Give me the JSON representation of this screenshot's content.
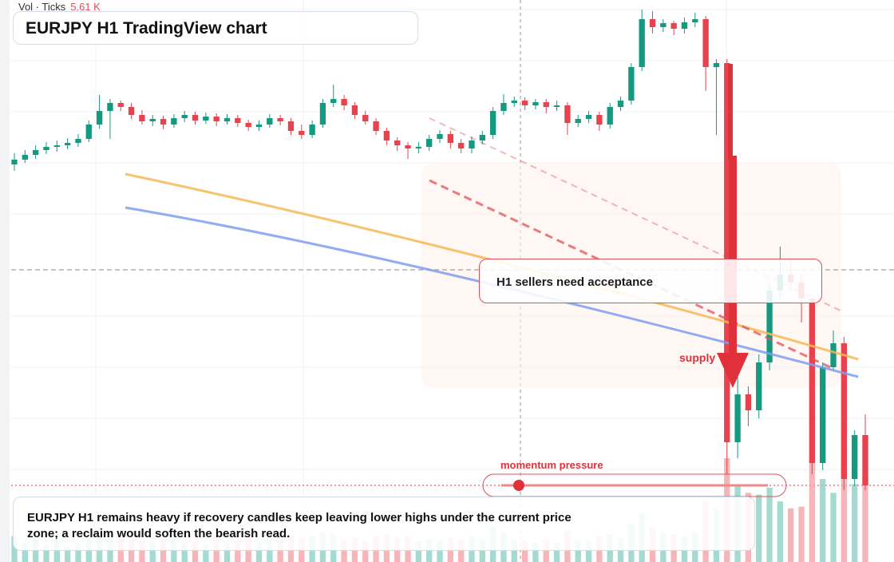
{
  "volume_label": "Vol · Ticks",
  "volume_value": "5.61 K",
  "title": "EURJPY H1 TradingView chart",
  "callout": "H1 sellers need acceptance",
  "zone_label": "supply",
  "slider_label": "momentum pressure",
  "note": "EURJPY H1 remains heavy if recovery candles keep leaving lower highs under the current price zone; a reclaim would soften the bearish read.",
  "candles": [
    [
      498,
      512,
      490,
      504,
      30
    ],
    [
      504,
      516,
      500,
      510,
      22
    ],
    [
      510,
      522,
      505,
      516,
      26
    ],
    [
      516,
      526,
      511,
      520,
      20
    ],
    [
      520,
      528,
      514,
      522,
      24
    ],
    [
      522,
      531,
      517,
      525,
      18
    ],
    [
      525,
      536,
      520,
      530,
      22
    ],
    [
      530,
      553,
      526,
      548,
      34
    ],
    [
      548,
      585,
      543,
      565,
      40
    ],
    [
      565,
      580,
      530,
      575,
      36
    ],
    [
      575,
      578,
      565,
      570,
      28
    ],
    [
      570,
      575,
      555,
      560,
      26
    ],
    [
      560,
      566,
      548,
      552,
      24
    ],
    [
      552,
      560,
      546,
      555,
      22
    ],
    [
      555,
      559,
      542,
      548,
      30
    ],
    [
      548,
      561,
      544,
      556,
      26
    ],
    [
      556,
      565,
      551,
      560,
      22
    ],
    [
      560,
      564,
      548,
      553,
      24
    ],
    [
      553,
      563,
      549,
      558,
      20
    ],
    [
      558,
      562,
      546,
      552,
      26
    ],
    [
      552,
      561,
      548,
      556,
      22
    ],
    [
      556,
      560,
      545,
      550,
      24
    ],
    [
      550,
      554,
      540,
      545,
      28
    ],
    [
      545,
      553,
      540,
      548,
      22
    ],
    [
      548,
      561,
      544,
      556,
      26
    ],
    [
      556,
      560,
      547,
      552,
      24
    ],
    [
      552,
      556,
      535,
      540,
      30
    ],
    [
      540,
      548,
      530,
      535,
      28
    ],
    [
      535,
      553,
      531,
      548,
      30
    ],
    [
      548,
      580,
      544,
      575,
      34
    ],
    [
      575,
      598,
      570,
      580,
      32
    ],
    [
      580,
      585,
      566,
      572,
      26
    ],
    [
      572,
      576,
      555,
      560,
      28
    ],
    [
      560,
      565,
      548,
      552,
      24
    ],
    [
      552,
      556,
      535,
      540,
      30
    ],
    [
      540,
      544,
      522,
      528,
      32
    ],
    [
      528,
      532,
      515,
      522,
      28
    ],
    [
      522,
      526,
      505,
      518,
      30
    ],
    [
      518,
      526,
      512,
      520,
      24
    ],
    [
      520,
      535,
      515,
      530,
      26
    ],
    [
      530,
      541,
      525,
      536,
      24
    ],
    [
      536,
      540,
      518,
      525,
      28
    ],
    [
      525,
      530,
      512,
      518,
      26
    ],
    [
      518,
      533,
      512,
      528,
      30
    ],
    [
      528,
      540,
      523,
      535,
      26
    ],
    [
      535,
      570,
      530,
      565,
      40
    ],
    [
      565,
      586,
      560,
      575,
      34
    ],
    [
      575,
      583,
      570,
      578,
      26
    ],
    [
      578,
      582,
      566,
      572,
      24
    ],
    [
      572,
      580,
      567,
      576,
      22
    ],
    [
      576,
      580,
      562,
      570,
      26
    ],
    [
      570,
      578,
      565,
      572,
      22
    ],
    [
      572,
      576,
      535,
      550,
      36
    ],
    [
      550,
      560,
      545,
      555,
      26
    ],
    [
      555,
      565,
      550,
      560,
      24
    ],
    [
      560,
      564,
      540,
      548,
      30
    ],
    [
      548,
      575,
      543,
      570,
      32
    ],
    [
      570,
      583,
      565,
      578,
      28
    ],
    [
      578,
      625,
      573,
      620,
      44
    ],
    [
      620,
      692,
      615,
      680,
      56
    ],
    [
      680,
      690,
      662,
      670,
      40
    ],
    [
      670,
      680,
      664,
      675,
      34
    ],
    [
      675,
      678,
      660,
      668,
      32
    ],
    [
      668,
      682,
      662,
      676,
      30
    ],
    [
      676,
      688,
      670,
      680,
      34
    ],
    [
      680,
      684,
      590,
      620,
      70
    ],
    [
      620,
      630,
      535,
      625,
      62
    ],
    [
      625,
      630,
      110,
      150,
      120
    ],
    [
      150,
      240,
      130,
      210,
      90
    ],
    [
      210,
      220,
      170,
      190,
      80
    ],
    [
      190,
      260,
      180,
      250,
      78
    ],
    [
      250,
      350,
      240,
      340,
      86
    ],
    [
      340,
      395,
      330,
      360,
      70
    ],
    [
      360,
      378,
      340,
      350,
      62
    ],
    [
      350,
      360,
      300,
      330,
      64
    ],
    [
      330,
      335,
      110,
      124,
      118
    ],
    [
      124,
      250,
      115,
      244,
      96
    ],
    [
      244,
      290,
      240,
      274,
      80
    ],
    [
      274,
      282,
      90,
      104,
      112
    ],
    [
      104,
      165,
      95,
      159,
      90
    ],
    [
      159,
      185,
      90,
      96,
      100
    ]
  ]
}
